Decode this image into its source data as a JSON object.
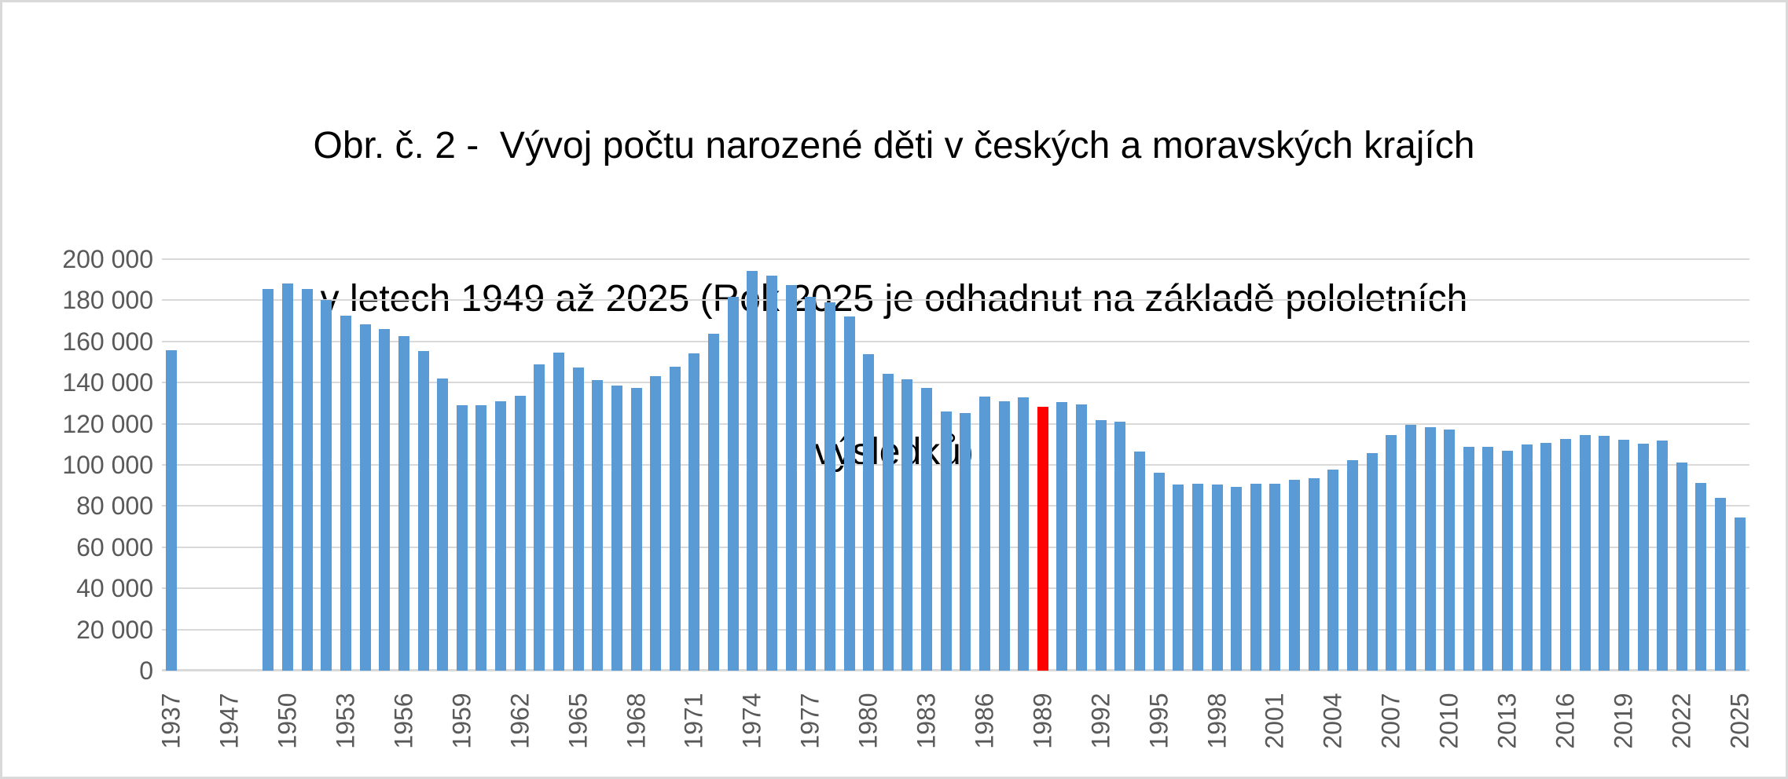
{
  "title": {
    "lines": [
      "Obr. č. 2 -  Vývoj počtu narozené děti v českých a moravských krajích",
      "v letech 1949 až 2025 (Rok 2025 je odhadnut na základě pololetních",
      "výsledků)"
    ]
  },
  "colors": {
    "bar": "#5b9bd5",
    "highlight": "#ff0000",
    "gridline": "#d9d9d9",
    "axis_text": "#595959",
    "title_text": "#000000",
    "frame_border": "#d9d9d9",
    "background": "#ffffff"
  },
  "chart_data": {
    "type": "bar",
    "title": "Obr. č. 2 -  Vývoj počtu narozené děti v českých a moravských krajích v letech 1949 až 2025 (Rok 2025 je odhadnut na základě pololetních výsledků)",
    "xlabel": "",
    "ylabel": "",
    "ylim": [
      0,
      200000
    ],
    "ytick_interval": 20000,
    "ytick_labels": [
      "0",
      "20 000",
      "40 000",
      "60 000",
      "80 000",
      "100 000",
      "120 000",
      "140 000",
      "160 000",
      "180 000",
      "200 000"
    ],
    "grid": true,
    "legend_position": "none",
    "xtick_every": 3,
    "xtick_labels": [
      "1937",
      "1947",
      "1950",
      "1953",
      "1956",
      "1959",
      "1962",
      "1965",
      "1968",
      "1971",
      "1974",
      "1977",
      "1980",
      "1983",
      "1986",
      "1989",
      "1992",
      "1995",
      "1998",
      "2001",
      "2004",
      "2007",
      "2010",
      "2013",
      "2016",
      "2019",
      "2022",
      "2025"
    ],
    "highlight": {
      "category": "1989",
      "color": "#ff0000"
    },
    "bar_color": "#5b9bd5",
    "categories": [
      "1937",
      "",
      "",
      "1947",
      "1948",
      "1949",
      "1950",
      "1951",
      "1952",
      "1953",
      "1954",
      "1955",
      "1956",
      "1957",
      "1958",
      "1959",
      "1960",
      "1961",
      "1962",
      "1963",
      "1964",
      "1965",
      "1966",
      "1967",
      "1968",
      "1969",
      "1970",
      "1971",
      "1972",
      "1973",
      "1974",
      "1975",
      "1976",
      "1977",
      "1978",
      "1979",
      "1980",
      "1981",
      "1982",
      "1983",
      "1984",
      "1985",
      "1986",
      "1987",
      "1988",
      "1989",
      "1990",
      "1991",
      "1992",
      "1993",
      "1994",
      "1995",
      "1996",
      "1997",
      "1998",
      "1999",
      "2000",
      "2001",
      "2002",
      "2003",
      "2004",
      "2005",
      "2006",
      "2007",
      "2008",
      "2009",
      "2010",
      "2011",
      "2012",
      "2013",
      "2014",
      "2015",
      "2016",
      "2017",
      "2018",
      "2019",
      "2020",
      "2021",
      "2022",
      "2023",
      "2024",
      "2025"
    ],
    "values": [
      155700,
      null,
      null,
      null,
      null,
      185500,
      188300,
      185600,
      180100,
      172500,
      168400,
      165900,
      162500,
      155400,
      141800,
      129000,
      128900,
      131000,
      133600,
      148800,
      154400,
      147400,
      141200,
      138400,
      137400,
      143200,
      147900,
      154200,
      163700,
      181800,
      194200,
      191800,
      187400,
      181800,
      178900,
      172100,
      153800,
      144400,
      141700,
      137400,
      126000,
      125200,
      133400,
      130900,
      132700,
      128400,
      130600,
      129400,
      121700,
      121000,
      106600,
      96100,
      90400,
      90700,
      90500,
      89500,
      90900,
      90700,
      92800,
      93700,
      97700,
      102200,
      105800,
      114600,
      119600,
      118300,
      117200,
      108700,
      108600,
      106800,
      109900,
      110800,
      112700,
      114400,
      114000,
      112200,
      110200,
      111800,
      101300,
      91100,
      84000,
      74300
    ]
  }
}
